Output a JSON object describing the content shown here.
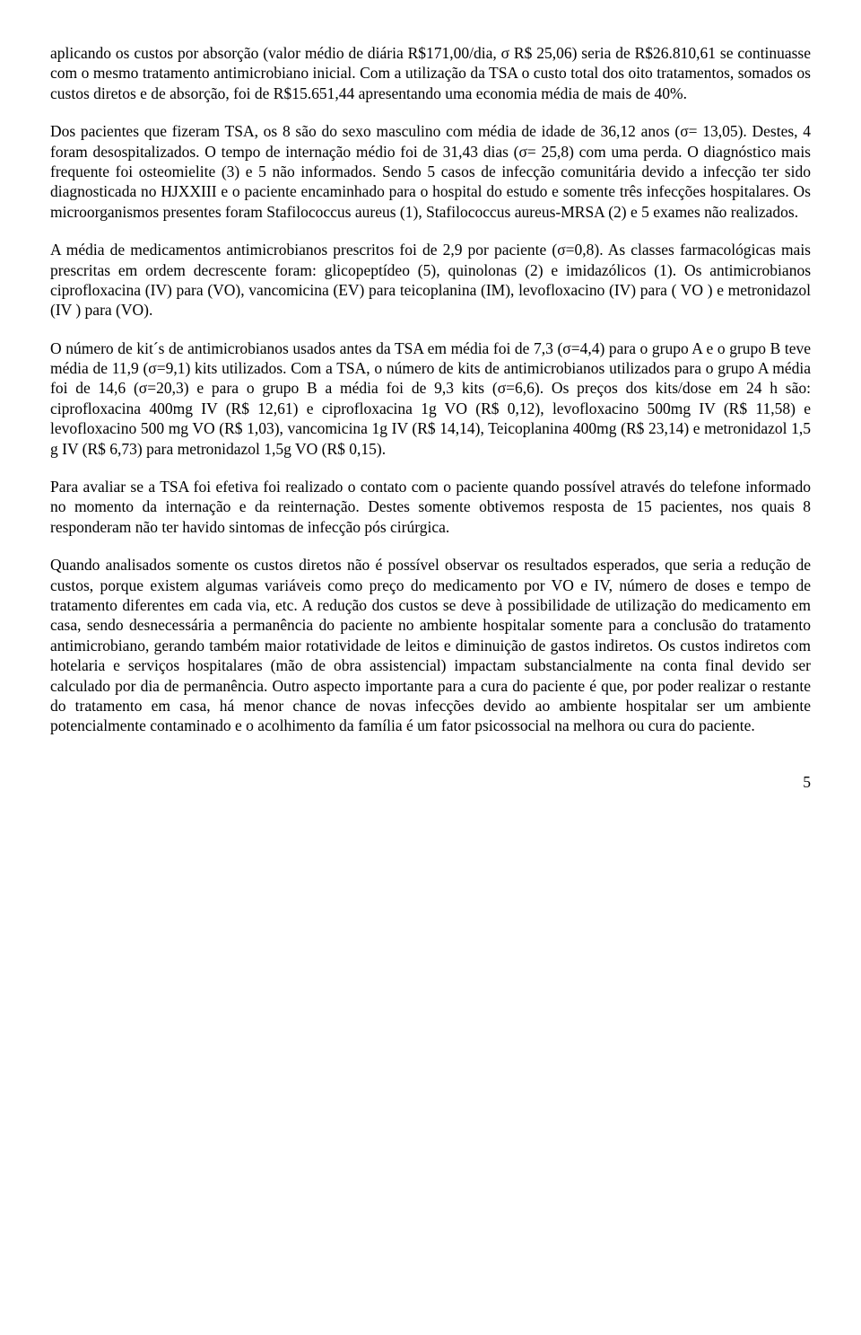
{
  "paragraphs": {
    "p1": "aplicando os custos por absorção (valor médio de diária R$171,00/dia, σ R$ 25,06) seria de R$26.810,61 se continuasse com o mesmo tratamento antimicrobiano inicial. Com a utilização da TSA o custo total dos oito tratamentos, somados os custos diretos e de absorção, foi de R$15.651,44 apresentando uma economia média de mais de 40%.",
    "p2": "Dos pacientes que fizeram TSA, os 8 são do sexo masculino com média de idade de 36,12 anos (σ= 13,05). Destes, 4 foram desospitalizados. O tempo de internação médio foi de 31,43 dias (σ= 25,8) com uma perda. O diagnóstico mais frequente foi osteomielite (3) e 5 não informados. Sendo 5 casos de infecção comunitária devido a infecção ter sido diagnosticada no HJXXIII e o paciente encaminhado para o hospital do estudo e  somente três infecções hospitalares. Os microorganismos presentes foram Stafilococcus aureus (1), Stafilococcus aureus-MRSA (2) e 5 exames não realizados.",
    "p3": "A média de medicamentos antimicrobianos prescritos foi de 2,9 por paciente (σ=0,8). As classes farmacológicas mais prescritas em ordem decrescente foram: glicopeptídeo (5), quinolonas (2) e imidazólicos (1). Os antimicrobianos ciprofloxacina (IV) para (VO), vancomicina (EV) para teicoplanina (IM), levofloxacino (IV) para ( VO ) e metronidazol (IV ) para (VO).",
    "p4": "O número de kit´s de antimicrobianos usados antes da TSA em média foi de 7,3 (σ=4,4) para o grupo A e o grupo B teve média de 11,9 (σ=9,1) kits utilizados. Com a TSA, o número de kits de antimicrobianos utilizados para o grupo A  média foi de 14,6 (σ=20,3) e para o grupo B a média foi de 9,3 kits (σ=6,6). Os preços dos kits/dose em 24 h são: ciprofloxacina 400mg IV (R$ 12,61) e ciprofloxacina 1g VO (R$ 0,12), levofloxacino 500mg IV (R$ 11,58) e levofloxacino 500 mg VO (R$ 1,03), vancomicina 1g IV (R$ 14,14), Teicoplanina 400mg (R$ 23,14) e metronidazol 1,5 g IV (R$ 6,73) para metronidazol 1,5g VO (R$ 0,15).",
    "p5": "Para avaliar se a TSA foi efetiva foi realizado o contato com o paciente quando possível através do telefone informado no momento da internação e da reinternação. Destes somente obtivemos resposta de 15 pacientes, nos quais 8 responderam não ter havido sintomas de infecção pós cirúrgica.",
    "p6": "Quando analisados somente os custos diretos não é possível observar os resultados esperados, que seria a redução de custos, porque existem algumas variáveis como preço do medicamento por VO e IV, número de doses e tempo de tratamento diferentes em cada via, etc. A redução dos custos se deve à possibilidade de utilização do medicamento em casa, sendo desnecessária a permanência do paciente no ambiente hospitalar somente para a conclusão do tratamento antimicrobiano, gerando também maior rotatividade de leitos e diminuição de gastos indiretos. Os custos indiretos com hotelaria e serviços hospitalares (mão de obra assistencial) impactam substancialmente na conta final devido ser calculado por dia de permanência. Outro aspecto importante para a cura do paciente é que, por poder realizar o restante do tratamento em casa, há menor chance de novas infecções devido ao ambiente hospitalar ser um ambiente potencialmente contaminado e o acolhimento da família é um fator psicossocial na melhora ou cura do paciente."
  },
  "pageNumber": "5"
}
